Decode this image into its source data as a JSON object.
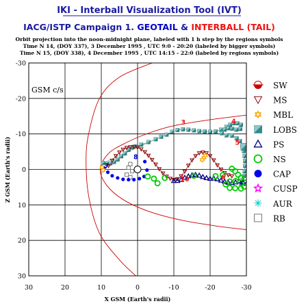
{
  "header": {
    "app_title": "IKI - Interball Visualization Tool (IVT)",
    "campaign": "IACG/ISTP Campaign 1.",
    "geotail": "GEOTAIL",
    "amp": "&",
    "interball": "INTERBALL (TAIL)",
    "desc1": "Orbit projection into the noon-midnight plane, labeled with 1 h step by the regions symbols",
    "desc2": "Time N 14, (DOY 337), 3 December 1995 ,  UTC 9:0 - 20:20 (labeled by bigger symbols)",
    "desc3": "Time N 15, (DOY 338), 4 December 1995 ,  UTC 14:15 - 22:0 (labeled by regions symbols)"
  },
  "colors": {
    "title_blue": "#1a1aa0",
    "geotail": "#0000cc",
    "interball": "#ee1111",
    "boundary": "#cc0000",
    "ms": "#8b0000",
    "mbl": "#ffa500",
    "lobs": "#2e8b8b",
    "ps": "#000080",
    "ns": "#00cc00",
    "cap": "#0000ee",
    "cusp": "#ff00ff",
    "aur": "#00cccc",
    "rb": "#777777"
  },
  "chart_data": {
    "type": "scatter",
    "title": "",
    "coord_label": "GSM c/s",
    "xlabel": "X GSM (Earth's radii)",
    "ylabel": "Z GSM (Earth's radii)",
    "xlim": [
      30,
      -30
    ],
    "ylim": [
      -30,
      30
    ],
    "y_axis_inverted": true,
    "x_ticks": [
      30,
      20,
      10,
      0,
      -10,
      -20,
      -30
    ],
    "x_tick_labels": [
      "30",
      "20",
      "10",
      "0",
      "-10",
      "-20",
      "-30"
    ],
    "y_ticks": [
      -30,
      -20,
      -10,
      0,
      10,
      20,
      30
    ],
    "y_tick_labels": [
      "-30",
      "-20",
      "-10",
      "0",
      "10",
      "20",
      "30"
    ],
    "grid": true,
    "earth": [
      0,
      0
    ],
    "legend_position": "right",
    "legend": [
      {
        "key": "sw",
        "label": "SW",
        "symbol": "half-disk"
      },
      {
        "key": "ms",
        "label": "MS",
        "symbol": "triangle-down"
      },
      {
        "key": "mbl",
        "label": "MBL",
        "symbol": "star-6"
      },
      {
        "key": "lobs",
        "label": "LOBS",
        "symbol": "square-shaded"
      },
      {
        "key": "ps",
        "label": "PS",
        "symbol": "triangle"
      },
      {
        "key": "ns",
        "label": "NS",
        "symbol": "circle-open"
      },
      {
        "key": "cap",
        "label": "CAP",
        "symbol": "circle-filled"
      },
      {
        "key": "cusp",
        "label": "CUSP",
        "symbol": "star-5"
      },
      {
        "key": "aur",
        "label": "AUR",
        "symbol": "asterisk"
      },
      {
        "key": "rb",
        "label": "RB",
        "symbol": "square-open"
      }
    ],
    "boundaries": [
      {
        "name": "bow shock",
        "points": [
          [
            -4,
            -30
          ],
          [
            5,
            -26
          ],
          [
            10.5,
            -20
          ],
          [
            13.5,
            -10
          ],
          [
            14.2,
            -2
          ],
          [
            13.4,
            8
          ],
          [
            10.5,
            18
          ],
          [
            5,
            25.5
          ],
          [
            0.5,
            30
          ]
        ]
      },
      {
        "name": "magnetopause",
        "points": [
          [
            -30,
            -15.3
          ],
          [
            -20,
            -14
          ],
          [
            -10,
            -12.3
          ],
          [
            -3,
            -10.2
          ],
          [
            3,
            -7.6
          ],
          [
            8,
            -4.5
          ],
          [
            10.3,
            0
          ],
          [
            8.5,
            4.5
          ],
          [
            4,
            8.5
          ],
          [
            -3,
            11.8
          ],
          [
            -12,
            14.3
          ],
          [
            -22,
            16
          ],
          [
            -30,
            17
          ]
        ]
      }
    ],
    "series": [
      {
        "name": "GEOTAIL",
        "marker": "lobs",
        "points": [
          [
            -5,
            -8.5
          ],
          [
            -3,
            -7.7
          ],
          [
            -1,
            -7
          ],
          [
            0.5,
            -6.5
          ],
          [
            1.5,
            -6.2
          ],
          [
            2.5,
            -5.5
          ],
          [
            3.5,
            -4.5
          ],
          [
            4.5,
            -3.7
          ],
          [
            5.5,
            -2.8
          ],
          [
            6.5,
            -2.1
          ],
          [
            7.5,
            -1.7
          ],
          [
            8.5,
            -1.6
          ],
          [
            9.5,
            -1.8
          ],
          [
            -6.5,
            -9.2
          ],
          [
            -8,
            -9.8
          ],
          [
            -9.5,
            -10.6
          ],
          [
            -11,
            -11.1
          ],
          [
            -12.5,
            -11.3
          ],
          [
            -14,
            -11.2
          ],
          [
            -15.5,
            -11
          ],
          [
            -17,
            -10.8
          ],
          [
            -18.5,
            -10.7
          ],
          [
            -20,
            -10.6
          ],
          [
            -21.5,
            -10.7
          ],
          [
            -23,
            -11.2
          ],
          [
            -24.5,
            -12
          ],
          [
            -25.5,
            -12.6
          ],
          [
            -26.5,
            -13
          ],
          [
            -27.5,
            -13
          ],
          [
            -28.5,
            -12.6
          ],
          [
            -28.3,
            -11.4
          ],
          [
            -27.2,
            -11.2
          ],
          [
            -26,
            -11.5
          ],
          [
            -25,
            -11.6
          ],
          [
            -24,
            -11.2
          ],
          [
            -23.2,
            -10.2
          ],
          [
            -24.5,
            -9.6
          ],
          [
            -26,
            -9.5
          ],
          [
            -27.3,
            -8.8
          ],
          [
            -28.2,
            -8
          ],
          [
            -28.9,
            -6.6
          ],
          [
            -29.3,
            -5.2
          ],
          [
            -29.5,
            -3.8
          ],
          [
            -29.6,
            -2.4
          ],
          [
            -29.6,
            -1
          ],
          [
            -29.5,
            0.5
          ],
          [
            -29.3,
            1.8
          ],
          [
            -28.9,
            3
          ],
          [
            -28.5,
            4
          ]
        ]
      },
      {
        "name": "INTERBALL (TAIL)",
        "marker": "ms",
        "points": [
          [
            8,
            -1
          ],
          [
            7,
            -2.5
          ],
          [
            6,
            -3.8
          ],
          [
            5,
            -4.8
          ],
          [
            4,
            -5.6
          ],
          [
            3,
            -6.1
          ],
          [
            2,
            -6.3
          ],
          [
            1,
            -6.4
          ],
          [
            0,
            -6.2
          ],
          [
            -1,
            -5.7
          ],
          [
            -2,
            -4.9
          ],
          [
            -3,
            -3.9
          ],
          [
            -4,
            -2.7
          ],
          [
            -5,
            -1.4
          ],
          [
            -6,
            -0.1
          ],
          [
            -7,
            1.1
          ],
          [
            -8,
            2
          ],
          [
            -9,
            2.6
          ],
          [
            -10,
            2.9
          ],
          [
            -11,
            2.7
          ],
          [
            -12,
            1.9
          ],
          [
            -13,
            0.6
          ],
          [
            -14,
            -1.1
          ],
          [
            -15,
            -2.6
          ],
          [
            -16,
            -3.8
          ],
          [
            -17,
            -4.6
          ],
          [
            -18,
            -4.8
          ],
          [
            -19,
            -4.6
          ],
          [
            -20,
            -3.8
          ],
          [
            -21,
            -2.6
          ],
          [
            -22,
            -1.2
          ],
          [
            -23,
            0
          ],
          [
            -24,
            1
          ],
          [
            -25,
            1.6
          ],
          [
            -26,
            1.9
          ]
        ]
      },
      {
        "name": "RB",
        "marker": "rb",
        "points": [
          [
            2,
            -1.5
          ],
          [
            2.5,
            -0.5
          ],
          [
            1.5,
            0.5
          ],
          [
            3,
            1.5
          ],
          [
            2,
            2.2
          ]
        ]
      },
      {
        "name": "CAP",
        "marker": "cap",
        "points": [
          [
            -2,
            -2.2
          ],
          [
            -2.6,
            0.2
          ],
          [
            -1.8,
            2
          ],
          [
            -0.5,
            2.6
          ],
          [
            1,
            2.9
          ],
          [
            2.5,
            2.9
          ],
          [
            4,
            2.8
          ],
          [
            5.5,
            2.4
          ],
          [
            7,
            1.8
          ],
          [
            8.2,
            0.8
          ],
          [
            9.2,
            -0.4
          ]
        ]
      },
      {
        "name": "PS",
        "marker": "ps",
        "points": [
          [
            -10,
            3.2
          ],
          [
            -11,
            3.2
          ],
          [
            -12,
            2.9
          ],
          [
            -13,
            2.3
          ],
          [
            -14,
            1.9
          ],
          [
            -15,
            1.6
          ],
          [
            -16,
            1.5
          ],
          [
            -17,
            1.7
          ],
          [
            -18,
            2.1
          ],
          [
            -19,
            2.4
          ],
          [
            -20,
            2.6
          ],
          [
            -21,
            2.5
          ],
          [
            -22,
            2.7
          ],
          [
            -23,
            3.1
          ],
          [
            -24,
            3.4
          ],
          [
            -25,
            3.7
          ],
          [
            -26,
            3.8
          ],
          [
            -27,
            3.6
          ],
          [
            -28,
            3.3
          ],
          [
            -29,
            3.6
          ],
          [
            -30,
            4
          ]
        ]
      },
      {
        "name": "NS",
        "marker": "ns",
        "points": [
          [
            -26,
            -0.2
          ],
          [
            -26.9,
            0.5
          ],
          [
            -27.7,
            1.5
          ],
          [
            -28.5,
            2.4
          ],
          [
            -27,
            3.3
          ],
          [
            -25.4,
            3.4
          ],
          [
            -24.3,
            4.2
          ],
          [
            -25.4,
            5.2
          ],
          [
            -26.9,
            5.3
          ],
          [
            -28.5,
            5.4
          ],
          [
            -29.4,
            4.9
          ],
          [
            -29.6,
            2.4
          ],
          [
            -23.5,
            1.6
          ],
          [
            -21.5,
            1.9
          ],
          [
            -15.5,
            1.8
          ],
          [
            -7.5,
            2.4
          ],
          [
            -5.5,
            3.9
          ],
          [
            -4.5,
            2.6
          ],
          [
            -2.8,
            2
          ]
        ]
      },
      {
        "name": "MBL",
        "marker": "mbl",
        "points": [
          [
            9.8,
            -0.6
          ],
          [
            9.5,
            0.2
          ],
          [
            -18.3,
            -3.3
          ],
          [
            -17.8,
            -2.7
          ],
          [
            -18.7,
            -3.9
          ]
        ]
      },
      {
        "name": "LOBS (large)",
        "marker": "lobs",
        "points": [
          [
            -29.4,
            -6.4
          ]
        ]
      }
    ],
    "hour_labels": [
      {
        "text": "3",
        "x": -12.6,
        "y": -13.2,
        "color": "interball"
      },
      {
        "text": "4",
        "x": -26.5,
        "y": -13.5,
        "color": "interball"
      },
      {
        "text": "5",
        "x": -27.5,
        "y": -7.5,
        "color": "interball"
      },
      {
        "text": "6",
        "x": -23.6,
        "y": 2.2,
        "color": "interball"
      },
      {
        "text": "7",
        "x": 8.5,
        "y": -1,
        "color": "geotail"
      },
      {
        "text": "8",
        "x": 0.5,
        "y": -3.5,
        "color": "geotail"
      },
      {
        "text": "10",
        "x": -13,
        "y": 2.8,
        "color": "interball"
      }
    ]
  }
}
